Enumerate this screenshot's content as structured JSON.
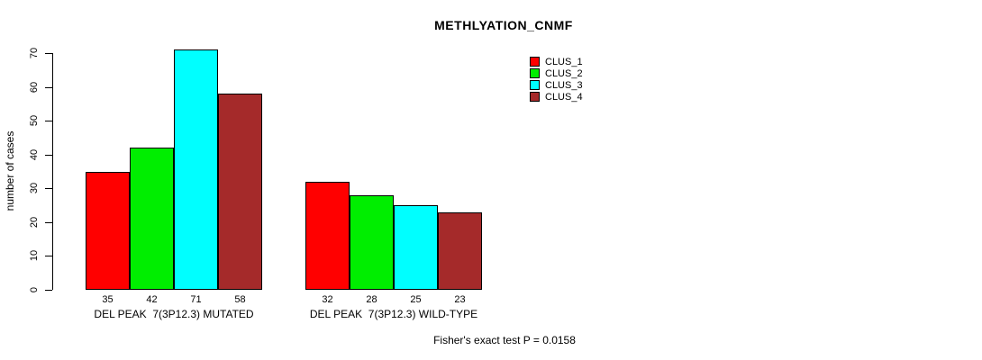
{
  "figure": {
    "background": "#ffffff",
    "text_color": "#000000"
  },
  "chart_data": {
    "type": "bar",
    "title": "METHLYATION_CNMF",
    "xlabel": "",
    "ylabel": "number of cases",
    "ylim": [
      0,
      70
    ],
    "yticks": [
      0,
      10,
      20,
      30,
      40,
      50,
      60,
      70
    ],
    "grid": false,
    "legend_position": "top-right",
    "bar_border_color": "#000000",
    "show_value_labels": true,
    "series": [
      {
        "name": "CLUS_1",
        "color": "#FF0000"
      },
      {
        "name": "CLUS_2",
        "color": "#00EE00"
      },
      {
        "name": "CLUS_3",
        "color": "#00FFFF"
      },
      {
        "name": "CLUS_4",
        "color": "#A52A2A"
      }
    ],
    "groups": [
      {
        "label": "DEL PEAK  7(3P12.3) MUTATED",
        "values": [
          35,
          42,
          71,
          58
        ]
      },
      {
        "label": "DEL PEAK  7(3P12.3) WILD-TYPE",
        "values": [
          32,
          28,
          25,
          23
        ]
      }
    ],
    "annotation": "Fisher's exact test P = 0.0158"
  }
}
